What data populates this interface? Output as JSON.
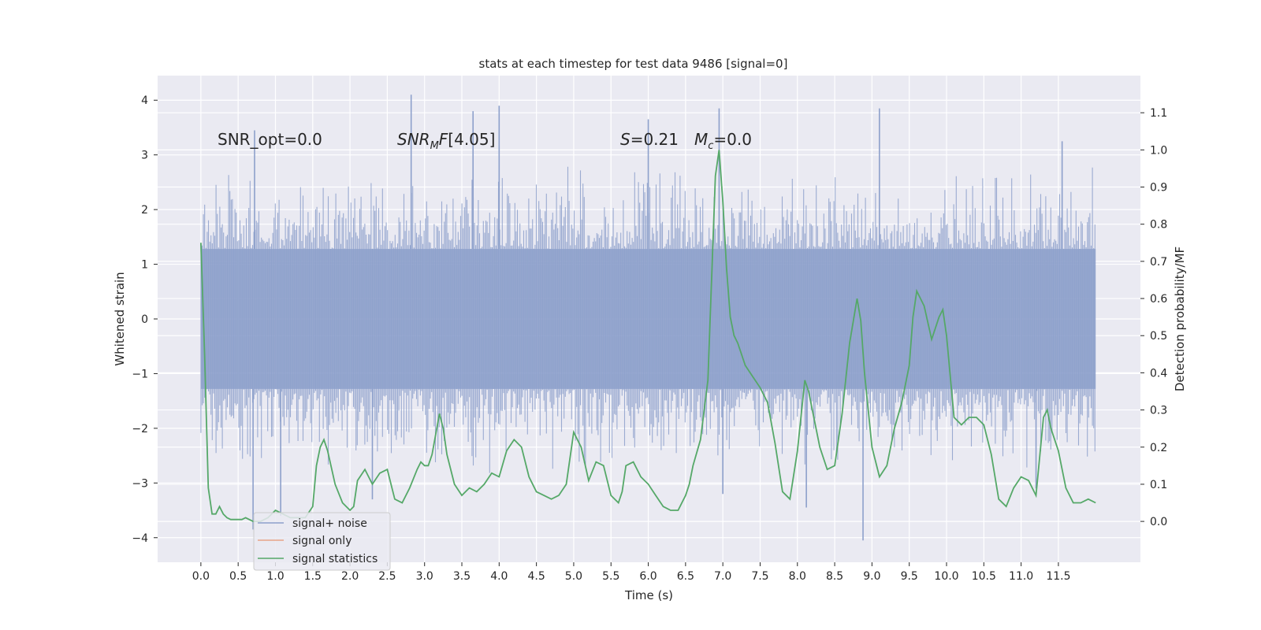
{
  "chart_data": {
    "type": "line",
    "title": "stats at each timestep for test data 9486 [signal=0]",
    "xlabel": "Time (s)",
    "ylabel": "Whitened strain",
    "y2label": "Detection probability/MF",
    "xlim": [
      -0.58,
      12.6
    ],
    "ylim": [
      -4.45,
      4.45
    ],
    "y2lim": [
      -0.11,
      1.2
    ],
    "x_ticks": [
      0.0,
      0.5,
      1.0,
      1.5,
      2.0,
      2.5,
      3.0,
      3.5,
      4.0,
      4.5,
      5.0,
      5.5,
      6.0,
      6.5,
      7.0,
      7.5,
      8.0,
      8.5,
      9.0,
      9.5,
      10.0,
      10.5,
      11.0,
      11.5
    ],
    "x_tick_labels": [
      "0.0",
      "0.5",
      "1.0",
      "1.5",
      "2.0",
      "2.5",
      "3.0",
      "3.5",
      "4.0",
      "4.5",
      "5.0",
      "5.5",
      "6.0",
      "6.5",
      "7.0",
      "7.5",
      "8.0",
      "8.5",
      "9.0",
      "9.5",
      "10.0",
      "10.5",
      "11.0",
      "11.5"
    ],
    "y_ticks": [
      4,
      3,
      2,
      1,
      0,
      -1,
      -2,
      -3,
      -4
    ],
    "y_tick_labels": [
      "4",
      "3",
      "2",
      "1",
      "0",
      "−1",
      "−2",
      "−3",
      "−4"
    ],
    "y2_ticks": [
      1.1,
      1.0,
      0.9,
      0.8,
      0.7,
      0.6,
      0.5,
      0.4,
      0.3,
      0.2,
      0.1,
      0.0
    ],
    "y2_tick_labels": [
      "1.1",
      "1.0",
      "0.9",
      "0.8",
      "0.7",
      "0.6",
      "0.5",
      "0.4",
      "0.3",
      "0.2",
      "0.1",
      "0.0"
    ],
    "grid": true,
    "legend_position": "lower-left",
    "annotations": {
      "snr_opt": "SNR_opt=0.0",
      "snr_mf": "[4.05]",
      "s_value": "=0.21",
      "mc_value": "=0.0"
    },
    "noise_band": {
      "x_start": 0.0,
      "x_end": 12.0,
      "core_min": -1.28,
      "core_max": 1.28,
      "typical_peak_max": 2.6,
      "typical_peak_min": -2.6,
      "extreme_peaks": [
        {
          "x": 0.72,
          "y": 3.45
        },
        {
          "x": 0.7,
          "y": -3.85
        },
        {
          "x": 1.07,
          "y": -3.6
        },
        {
          "x": 2.82,
          "y": 4.1
        },
        {
          "x": 3.65,
          "y": 3.8
        },
        {
          "x": 4.0,
          "y": 3.9
        },
        {
          "x": 2.3,
          "y": -3.3
        },
        {
          "x": 6.0,
          "y": 3.65
        },
        {
          "x": 6.95,
          "y": 3.85
        },
        {
          "x": 8.12,
          "y": -3.45
        },
        {
          "x": 8.88,
          "y": -4.05
        },
        {
          "x": 9.1,
          "y": 3.85
        },
        {
          "x": 11.2,
          "y": -3.1
        },
        {
          "x": 11.55,
          "y": 3.25
        },
        {
          "x": 7.0,
          "y": -3.2
        }
      ]
    },
    "series": [
      {
        "name": "signal+ noise",
        "color": "#8da0cb",
        "kind": "noise",
        "axis": "left"
      },
      {
        "name": "signal only",
        "color": "#e8a487",
        "kind": "line",
        "axis": "left",
        "x": [
          0.0,
          12.0
        ],
        "y": [
          0.0,
          0.0
        ]
      },
      {
        "name": "signal statistics",
        "color": "#55a868",
        "kind": "line",
        "axis": "right",
        "x": [
          0.0,
          0.05,
          0.1,
          0.15,
          0.2,
          0.25,
          0.3,
          0.35,
          0.4,
          0.45,
          0.5,
          0.55,
          0.6,
          0.7,
          0.8,
          0.9,
          1.0,
          1.1,
          1.2,
          1.3,
          1.4,
          1.5,
          1.55,
          1.6,
          1.65,
          1.7,
          1.8,
          1.9,
          2.0,
          2.05,
          2.1,
          2.2,
          2.3,
          2.4,
          2.5,
          2.6,
          2.7,
          2.8,
          2.9,
          2.95,
          3.0,
          3.05,
          3.1,
          3.2,
          3.25,
          3.3,
          3.4,
          3.5,
          3.6,
          3.7,
          3.8,
          3.9,
          4.0,
          4.1,
          4.2,
          4.3,
          4.4,
          4.5,
          4.6,
          4.7,
          4.8,
          4.9,
          5.0,
          5.1,
          5.2,
          5.3,
          5.4,
          5.5,
          5.6,
          5.65,
          5.7,
          5.8,
          5.9,
          6.0,
          6.1,
          6.2,
          6.3,
          6.4,
          6.5,
          6.55,
          6.6,
          6.7,
          6.8,
          6.9,
          6.95,
          7.0,
          7.05,
          7.1,
          7.15,
          7.2,
          7.3,
          7.4,
          7.5,
          7.6,
          7.7,
          7.8,
          7.9,
          8.0,
          8.1,
          8.15,
          8.2,
          8.3,
          8.4,
          8.5,
          8.6,
          8.7,
          8.8,
          8.85,
          8.9,
          9.0,
          9.1,
          9.2,
          9.3,
          9.4,
          9.5,
          9.55,
          9.6,
          9.7,
          9.8,
          9.85,
          9.9,
          9.95,
          10.0,
          10.1,
          10.2,
          10.3,
          10.4,
          10.5,
          10.6,
          10.7,
          10.8,
          10.9,
          11.0,
          11.1,
          11.2,
          11.3,
          11.35,
          11.4,
          11.5,
          11.6,
          11.7,
          11.8,
          11.9,
          12.0
        ],
        "y": [
          0.75,
          0.45,
          0.09,
          0.02,
          0.02,
          0.04,
          0.02,
          0.01,
          0.005,
          0.005,
          0.005,
          0.005,
          0.01,
          0.0,
          0.0,
          0.01,
          0.03,
          0.02,
          0.01,
          0.01,
          0.01,
          0.04,
          0.15,
          0.2,
          0.22,
          0.19,
          0.1,
          0.05,
          0.03,
          0.04,
          0.11,
          0.14,
          0.1,
          0.13,
          0.14,
          0.06,
          0.05,
          0.09,
          0.14,
          0.16,
          0.15,
          0.15,
          0.18,
          0.29,
          0.25,
          0.18,
          0.1,
          0.07,
          0.09,
          0.08,
          0.1,
          0.13,
          0.12,
          0.19,
          0.22,
          0.2,
          0.12,
          0.08,
          0.07,
          0.06,
          0.07,
          0.1,
          0.24,
          0.2,
          0.11,
          0.16,
          0.15,
          0.07,
          0.05,
          0.08,
          0.15,
          0.16,
          0.12,
          0.1,
          0.07,
          0.04,
          0.03,
          0.03,
          0.07,
          0.1,
          0.15,
          0.22,
          0.38,
          0.93,
          1.0,
          0.86,
          0.68,
          0.55,
          0.5,
          0.48,
          0.42,
          0.39,
          0.36,
          0.32,
          0.21,
          0.08,
          0.06,
          0.19,
          0.38,
          0.35,
          0.3,
          0.2,
          0.14,
          0.15,
          0.29,
          0.48,
          0.6,
          0.54,
          0.4,
          0.2,
          0.12,
          0.15,
          0.25,
          0.32,
          0.42,
          0.55,
          0.62,
          0.58,
          0.49,
          0.52,
          0.55,
          0.57,
          0.5,
          0.28,
          0.26,
          0.28,
          0.28,
          0.26,
          0.18,
          0.06,
          0.04,
          0.09,
          0.12,
          0.11,
          0.07,
          0.28,
          0.3,
          0.25,
          0.19,
          0.09,
          0.05,
          0.05,
          0.06,
          0.05
        ]
      }
    ]
  }
}
